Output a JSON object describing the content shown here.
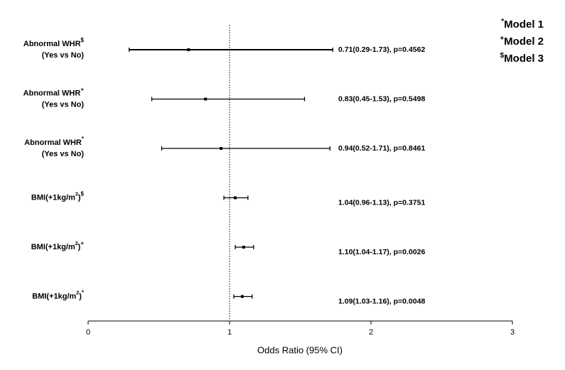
{
  "chart_data": {
    "type": "forest",
    "xlabel": "Odds Ratio (95% CI)",
    "xlim": [
      0,
      3
    ],
    "xticks": [
      0,
      1,
      2,
      3
    ],
    "reference_line": 1,
    "color": "#000000",
    "legend": [
      {
        "symbol": "*",
        "text": "Model 1"
      },
      {
        "symbol": "+",
        "text": "Model 2"
      },
      {
        "symbol": "$",
        "text": "Model 3"
      }
    ],
    "rows": [
      {
        "label": "Abnormal WHR",
        "marker": "$",
        "label_line2": "(Yes vs No)"
      },
      {
        "label": "Abnormal WHR",
        "marker": "+",
        "label_line2": "(Yes vs No)"
      },
      {
        "label": "Abnormal WHR",
        "marker": "*",
        "label_line2": "(Yes vs No)"
      },
      {
        "label": "BMI(+1kg/m",
        "power": "2",
        "label_end": ")",
        "marker": "$"
      },
      {
        "label": "BMI(+1kg/m",
        "power": "2",
        "label_end": ")",
        "marker": "+"
      },
      {
        "label": "BMI(+1kg/m",
        "power": "2",
        "label_end": ")",
        "marker": "*"
      }
    ],
    "values": [
      0.71,
      0.83,
      0.94,
      1.04,
      1.1,
      1.09
    ],
    "lower": [
      0.29,
      0.45,
      0.52,
      0.96,
      1.04,
      1.03
    ],
    "upper": [
      1.73,
      1.53,
      1.71,
      1.13,
      1.17,
      1.16
    ],
    "p_values": [
      0.4562,
      0.5498,
      0.8461,
      0.3751,
      0.0026,
      0.0048
    ],
    "value_labels": [
      "0.71(0.29-1.73), p=0.4562",
      "0.83(0.45-1.53), p=0.5498",
      "0.94(0.52-1.71), p=0.8461",
      "1.04(0.96-1.13), p=0.3751",
      "1.10(1.04-1.17), p=0.0026",
      "1.09(1.03-1.16), p=0.0048"
    ]
  }
}
